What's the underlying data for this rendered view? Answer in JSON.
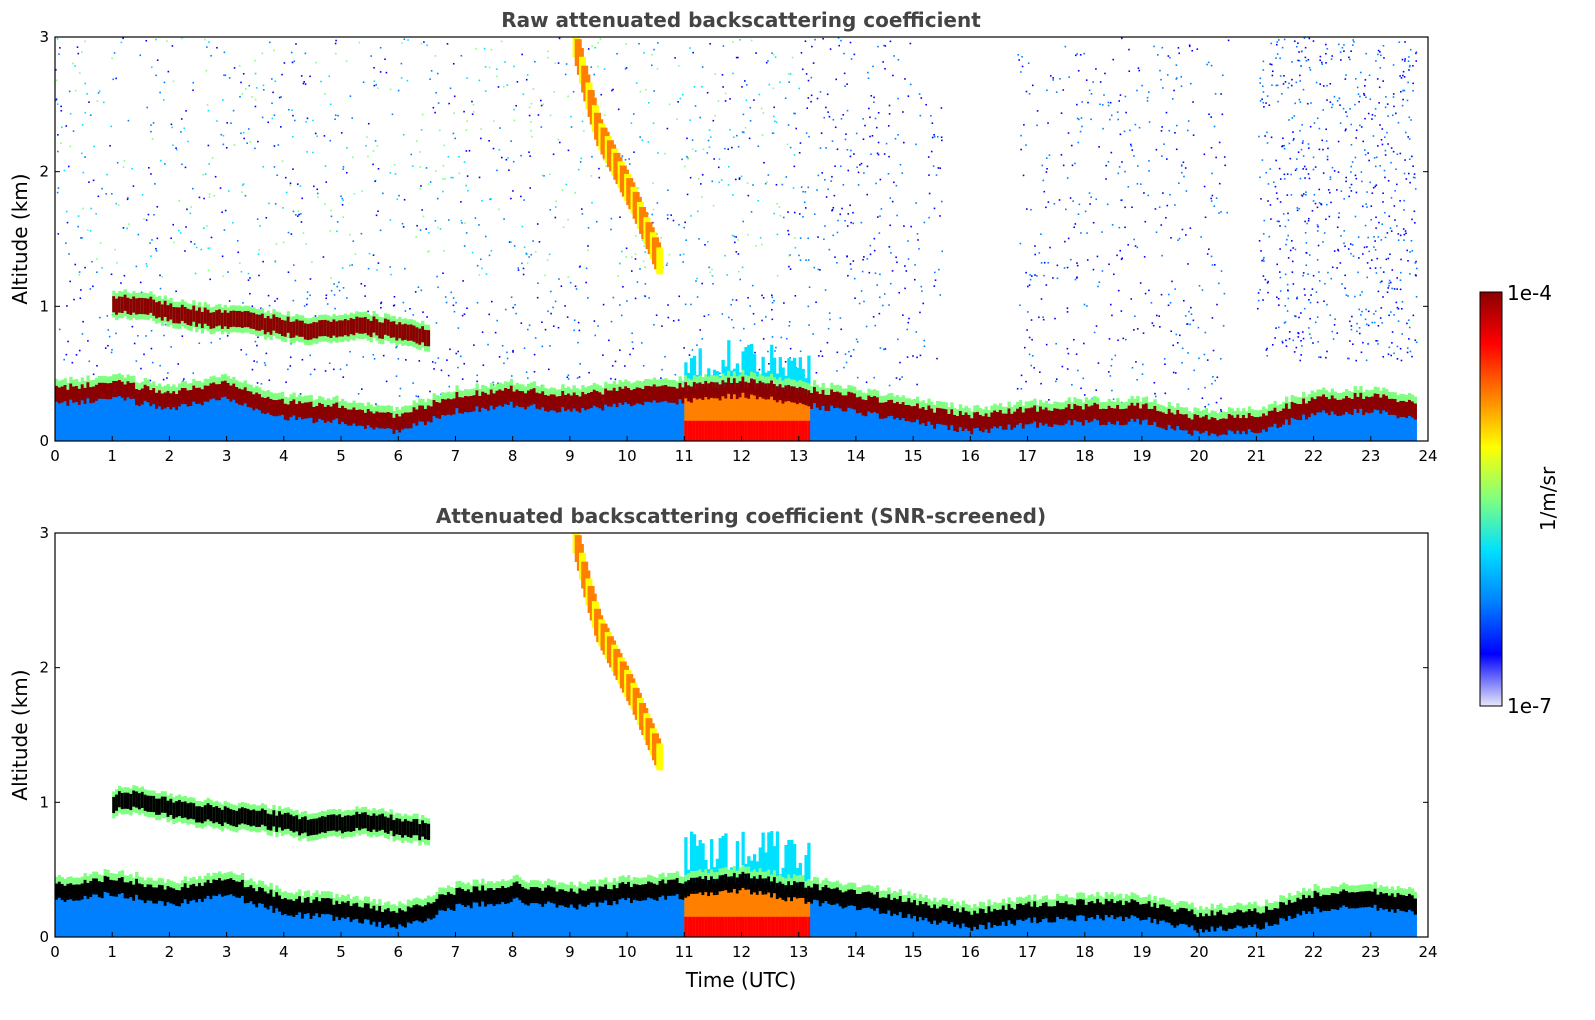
{
  "chart_data": [
    {
      "type": "heatmap",
      "title": "Raw attenuated backscattering coefficient",
      "xlabel": "",
      "ylabel": "Altitude (km)",
      "xlim": [
        0,
        24
      ],
      "ylim": [
        0,
        3
      ],
      "x_ticks": [
        "0",
        "1",
        "2",
        "3",
        "4",
        "5",
        "6",
        "7",
        "8",
        "9",
        "10",
        "11",
        "12",
        "13",
        "14",
        "15",
        "16",
        "17",
        "18",
        "19",
        "20",
        "21",
        "22",
        "23",
        "24"
      ],
      "y_ticks": [
        "0",
        "1",
        "2",
        "3"
      ],
      "screened": false,
      "layers": [
        {
          "name": "boundary layer top",
          "x": [
            0,
            1,
            2,
            3,
            4,
            5,
            6,
            7,
            8,
            9,
            10,
            11,
            12,
            13,
            14,
            15,
            16,
            17,
            18,
            19,
            20,
            21,
            22,
            23,
            23.8
          ],
          "y": [
            0.35,
            0.4,
            0.32,
            0.4,
            0.25,
            0.22,
            0.15,
            0.3,
            0.35,
            0.3,
            0.35,
            0.38,
            0.42,
            0.35,
            0.3,
            0.22,
            0.15,
            0.2,
            0.22,
            0.22,
            0.13,
            0.15,
            0.28,
            0.3,
            0.25
          ]
        },
        {
          "name": "elevated layer",
          "x": [
            1,
            1.5,
            2,
            2.5,
            3,
            3.5,
            4,
            4.5,
            5,
            5.5,
            6,
            6.5
          ],
          "y": [
            1.0,
            1.02,
            0.95,
            0.92,
            0.9,
            0.88,
            0.85,
            0.82,
            0.85,
            0.85,
            0.82,
            0.78
          ]
        },
        {
          "name": "fall streak",
          "x": [
            9.1,
            9.3,
            9.5,
            9.8,
            10.1,
            10.4,
            10.6
          ],
          "y": [
            2.95,
            2.6,
            2.3,
            2.05,
            1.8,
            1.5,
            1.3
          ]
        }
      ]
    },
    {
      "type": "heatmap",
      "title": "Attenuated backscattering coefficient (SNR-screened)",
      "xlabel": "Time (UTC)",
      "ylabel": "Altitude (km)",
      "xlim": [
        0,
        24
      ],
      "ylim": [
        0,
        3
      ],
      "x_ticks": [
        "0",
        "1",
        "2",
        "3",
        "4",
        "5",
        "6",
        "7",
        "8",
        "9",
        "10",
        "11",
        "12",
        "13",
        "14",
        "15",
        "16",
        "17",
        "18",
        "19",
        "20",
        "21",
        "22",
        "23",
        "24"
      ],
      "y_ticks": [
        "0",
        "1",
        "2",
        "3"
      ],
      "screened": true,
      "layers": [
        {
          "name": "boundary layer top",
          "x": [
            0,
            1,
            2,
            3,
            4,
            5,
            6,
            7,
            8,
            9,
            10,
            11,
            12,
            13,
            14,
            15,
            16,
            17,
            18,
            19,
            20,
            21,
            22,
            23,
            23.8
          ],
          "y": [
            0.35,
            0.4,
            0.32,
            0.4,
            0.25,
            0.22,
            0.15,
            0.3,
            0.35,
            0.3,
            0.35,
            0.38,
            0.42,
            0.35,
            0.3,
            0.22,
            0.15,
            0.2,
            0.22,
            0.22,
            0.13,
            0.15,
            0.28,
            0.3,
            0.25
          ]
        },
        {
          "name": "elevated layer",
          "x": [
            1,
            1.5,
            2,
            2.5,
            3,
            3.5,
            4,
            4.5,
            5,
            5.5,
            6,
            6.5
          ],
          "y": [
            1.0,
            1.02,
            0.95,
            0.92,
            0.9,
            0.88,
            0.85,
            0.82,
            0.85,
            0.85,
            0.82,
            0.78
          ]
        },
        {
          "name": "fall streak",
          "x": [
            9.1,
            9.3,
            9.5,
            9.8,
            10.1,
            10.4,
            10.6
          ],
          "y": [
            2.95,
            2.6,
            2.3,
            2.05,
            1.8,
            1.5,
            1.3
          ]
        }
      ]
    }
  ],
  "colorbar": {
    "min_label": "1e-7",
    "max_label": "1e-4",
    "unit_label": "1/m/sr",
    "colormap": [
      "#e8e8f8",
      "#0000ff",
      "#0080ff",
      "#00e0ff",
      "#80ff80",
      "#ffff00",
      "#ff8000",
      "#ff0000",
      "#8b0000"
    ]
  }
}
